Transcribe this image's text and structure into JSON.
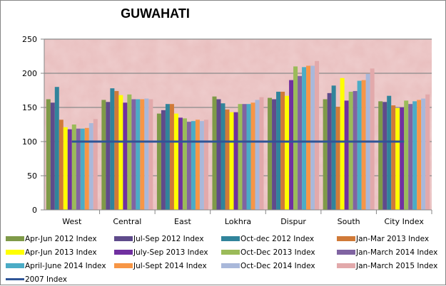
{
  "chart_data": {
    "type": "bar",
    "title": "GUWAHATI",
    "xlabel": "",
    "ylabel": "",
    "ylim": [
      0,
      250
    ],
    "yticks": [
      0,
      50,
      100,
      150,
      200,
      250
    ],
    "grid": true,
    "legend_position": "bottom",
    "categories": [
      "West",
      "Central",
      "East",
      "Lokhra",
      "Dispur",
      "South",
      "City Index"
    ],
    "series": [
      {
        "name": "Apr-Jun 2012 Index",
        "color": "#7F9A48",
        "values": [
          162,
          161,
          141,
          166,
          164,
          162,
          159
        ]
      },
      {
        "name": "Jul-Sep 2012 Index",
        "color": "#5F4B8B",
        "values": [
          157,
          158,
          146,
          162,
          162,
          171,
          158
        ]
      },
      {
        "name": "Oct-dec 2012 Index",
        "color": "#31849B",
        "values": [
          180,
          178,
          155,
          156,
          173,
          182,
          167
        ]
      },
      {
        "name": "Jan-Mar 2013 Index",
        "color": "#D07A38",
        "values": [
          132,
          174,
          155,
          147,
          173,
          151,
          153
        ]
      },
      {
        "name": "Apr-Jun 2013 Index",
        "color": "#FFFF00",
        "values": [
          121,
          168,
          141,
          143,
          167,
          193,
          149
        ]
      },
      {
        "name": "July-Sep 2013 Index",
        "color": "#7030A0",
        "values": [
          118,
          157,
          135,
          143,
          190,
          160,
          150
        ]
      },
      {
        "name": "Oct-Dec 2013 Index",
        "color": "#9BBB59",
        "values": [
          125,
          169,
          134,
          155,
          210,
          173,
          160
        ]
      },
      {
        "name": "Jan-March 2014 Index",
        "color": "#8064A2",
        "values": [
          119,
          162,
          129,
          155,
          196,
          174,
          155
        ]
      },
      {
        "name": "April-June 2014 Index",
        "color": "#4BACC6",
        "values": [
          119,
          162,
          130,
          155,
          209,
          189,
          159
        ]
      },
      {
        "name": "Jul-Sept 2014 Index",
        "color": "#F79646",
        "values": [
          120,
          162,
          132,
          157,
          211,
          190,
          161
        ]
      },
      {
        "name": "Oct-Dec 2014 Index",
        "color": "#A9B8DA",
        "values": [
          127,
          163,
          130,
          161,
          211,
          199,
          163
        ]
      },
      {
        "name": "Jan-March 2015 Index",
        "color": "#E2A9AB",
        "values": [
          133,
          162,
          132,
          165,
          218,
          207,
          169
        ]
      }
    ],
    "line_series": {
      "name": "2007 Index",
      "color": "#2F5597",
      "value": 100
    }
  },
  "legend": [
    [
      "Apr-Jun 2012 Index",
      "Jul-Sep 2012 Index",
      "Oct-dec 2012 Index",
      "Jan-Mar 2013 Index"
    ],
    [
      "Apr-Jun 2013 Index",
      "July-Sep 2013 Index",
      "Oct-Dec 2013 Index",
      "Jan-March 2014 Index"
    ],
    [
      "April-June 2014 Index",
      "Jul-Sept 2014 Index",
      "Oct-Dec 2014 Index",
      "Jan-March 2015 Index"
    ],
    [
      "2007 Index"
    ]
  ]
}
